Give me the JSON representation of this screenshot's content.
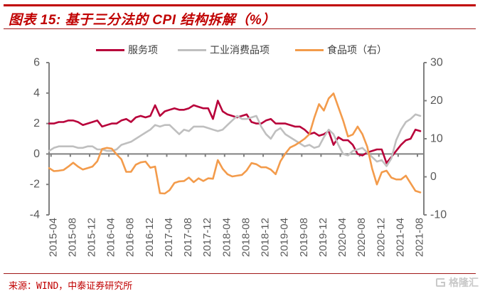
{
  "footer": {
    "source": "来源：WIND，中泰证券研究所",
    "watermark": "格隆汇"
  },
  "chart_data": {
    "type": "line",
    "title": "图表 15:  基于三分法的 CPI 结构拆解（%）",
    "xlabel": "",
    "ylabel_left": "",
    "ylabel_right": "",
    "grid": false,
    "legend_position": "top",
    "x": [
      "2015-03",
      "2015-04",
      "2015-05",
      "2015-06",
      "2015-07",
      "2015-08",
      "2015-09",
      "2015-10",
      "2015-11",
      "2015-12",
      "2016-01",
      "2016-02",
      "2016-03",
      "2016-04",
      "2016-05",
      "2016-06",
      "2016-07",
      "2016-08",
      "2016-09",
      "2016-10",
      "2016-11",
      "2016-12",
      "2017-01",
      "2017-02",
      "2017-03",
      "2017-04",
      "2017-05",
      "2017-06",
      "2017-07",
      "2017-08",
      "2017-09",
      "2017-10",
      "2017-11",
      "2017-12",
      "2018-01",
      "2018-02",
      "2018-03",
      "2018-04",
      "2018-05",
      "2018-06",
      "2018-07",
      "2018-08",
      "2018-09",
      "2018-10",
      "2018-11",
      "2018-12",
      "2019-01",
      "2019-02",
      "2019-03",
      "2019-04",
      "2019-05",
      "2019-06",
      "2019-07",
      "2019-08",
      "2019-09",
      "2019-10",
      "2019-11",
      "2019-12",
      "2020-01",
      "2020-02",
      "2020-03",
      "2020-04",
      "2020-05",
      "2020-06",
      "2020-07",
      "2020-08",
      "2020-09",
      "2020-10",
      "2020-11",
      "2020-12",
      "2021-01",
      "2021-02",
      "2021-03",
      "2021-04",
      "2021-05",
      "2021-06",
      "2021-07",
      "2021-08"
    ],
    "x_tick_labels": [
      "2015-04",
      "2015-08",
      "2015-12",
      "2016-04",
      "2016-08",
      "2016-12",
      "2017-04",
      "2017-08",
      "2017-12",
      "2018-04",
      "2018-08",
      "2018-12",
      "2019-04",
      "2019-08",
      "2019-12",
      "2020-04",
      "2020-08",
      "2020-12",
      "2021-04",
      "2021-08"
    ],
    "y_left": {
      "min": -4,
      "max": 6,
      "ticks": [
        6,
        4,
        2,
        0,
        -2,
        -4
      ]
    },
    "y_right": {
      "min": -10,
      "max": 30,
      "ticks": [
        30,
        20,
        10,
        0,
        -10
      ]
    },
    "series": [
      {
        "name": "服务项",
        "axis": "left",
        "color": "#B8003A",
        "values": [
          2.0,
          2.0,
          2.1,
          2.1,
          2.2,
          2.2,
          2.1,
          1.9,
          2.0,
          2.1,
          2.2,
          1.8,
          1.9,
          2.0,
          2.0,
          2.2,
          2.3,
          2.1,
          2.4,
          2.5,
          2.4,
          2.5,
          3.2,
          2.5,
          2.8,
          2.9,
          3.0,
          2.9,
          2.9,
          3.0,
          3.2,
          3.1,
          3.0,
          3.0,
          2.3,
          3.5,
          2.8,
          2.6,
          2.5,
          2.4,
          2.5,
          2.6,
          2.1,
          2.0,
          2.0,
          2.2,
          2.3,
          2.0,
          2.0,
          2.0,
          1.9,
          1.8,
          1.8,
          1.6,
          1.3,
          1.4,
          1.2,
          1.3,
          1.5,
          0.6,
          1.1,
          0.9,
          0.9,
          0.6,
          0.0,
          -0.1,
          0.1,
          0.2,
          0.3,
          0.3,
          -0.6,
          -0.2,
          0.2,
          0.6,
          0.9,
          1.0,
          1.6,
          1.5
        ]
      },
      {
        "name": "工业消费品项",
        "axis": "left",
        "color": "#BFBFBF",
        "values": [
          0.2,
          0.4,
          0.5,
          0.5,
          0.5,
          0.5,
          0.4,
          0.4,
          0.5,
          0.5,
          0.3,
          0.3,
          0.2,
          0.2,
          0.3,
          0.6,
          0.7,
          0.8,
          1.0,
          1.2,
          1.4,
          1.6,
          1.9,
          1.8,
          1.9,
          1.9,
          1.6,
          1.3,
          1.6,
          1.5,
          1.8,
          1.8,
          1.8,
          1.7,
          1.6,
          1.5,
          1.6,
          1.9,
          2.2,
          2.5,
          2.3,
          2.3,
          2.4,
          2.5,
          1.8,
          1.3,
          1.0,
          1.5,
          1.7,
          1.3,
          1.1,
          0.9,
          0.7,
          0.5,
          0.6,
          0.4,
          0.5,
          1.1,
          1.6,
          1.3,
          0.6,
          0.0,
          -0.1,
          0.2,
          0.3,
          0.4,
          0.1,
          -0.2,
          -0.5,
          -0.4,
          -0.8,
          -0.3,
          0.9,
          1.6,
          2.1,
          2.3,
          2.6,
          2.5
        ]
      },
      {
        "name": "食品项（右）",
        "axis": "right",
        "color": "#F39B4B",
        "values": [
          2.3,
          1.5,
          1.6,
          1.8,
          2.7,
          3.7,
          2.7,
          1.9,
          2.3,
          2.7,
          4.1,
          7.3,
          7.6,
          7.4,
          5.9,
          4.6,
          1.3,
          1.3,
          3.2,
          3.8,
          4.0,
          2.4,
          2.7,
          -4.3,
          -4.4,
          -3.5,
          -1.6,
          -1.2,
          -1.1,
          -0.2,
          -1.4,
          -0.4,
          -1.1,
          -0.4,
          -0.5,
          4.4,
          2.1,
          0.7,
          0.1,
          0.3,
          0.5,
          1.7,
          3.6,
          3.3,
          2.5,
          2.5,
          1.9,
          0.7,
          4.1,
          6.1,
          7.7,
          8.3,
          9.1,
          10.0,
          11.2,
          15.5,
          19.1,
          17.4,
          20.6,
          21.9,
          18.3,
          14.8,
          10.6,
          11.1,
          13.2,
          11.2,
          7.9,
          2.2,
          -2.0,
          1.2,
          1.6,
          -0.2,
          -0.7,
          -0.7,
          0.3,
          -1.7,
          -3.7,
          -4.1
        ]
      }
    ]
  }
}
